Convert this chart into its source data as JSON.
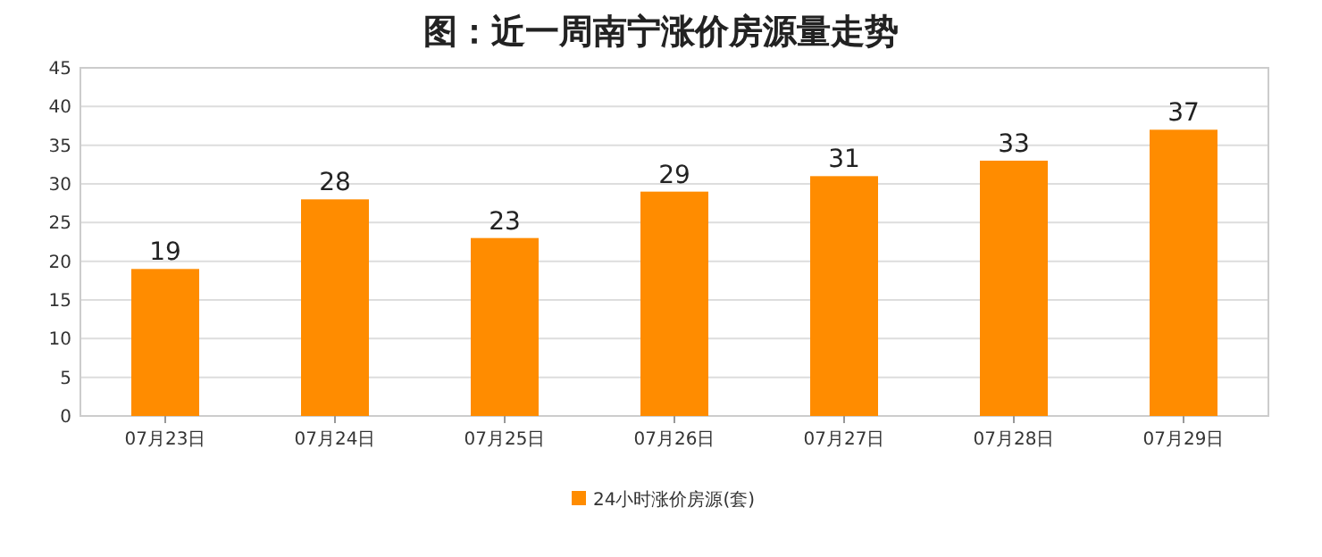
{
  "chart_data": {
    "type": "bar",
    "title": "图：近一周南宁涨价房源量走势",
    "categories": [
      "07月23日",
      "07月24日",
      "07月25日",
      "07月26日",
      "07月27日",
      "07月28日",
      "07月29日"
    ],
    "series": [
      {
        "name": "24小时涨价房源(套)",
        "color": "#ff8c00",
        "values": [
          19,
          28,
          23,
          29,
          31,
          33,
          37
        ]
      }
    ],
    "ylim": [
      0,
      45
    ],
    "yticks": [
      0,
      5,
      10,
      15,
      20,
      25,
      30,
      35,
      40,
      45
    ],
    "grid": "y",
    "legend": "bottom",
    "data_labels": true
  }
}
